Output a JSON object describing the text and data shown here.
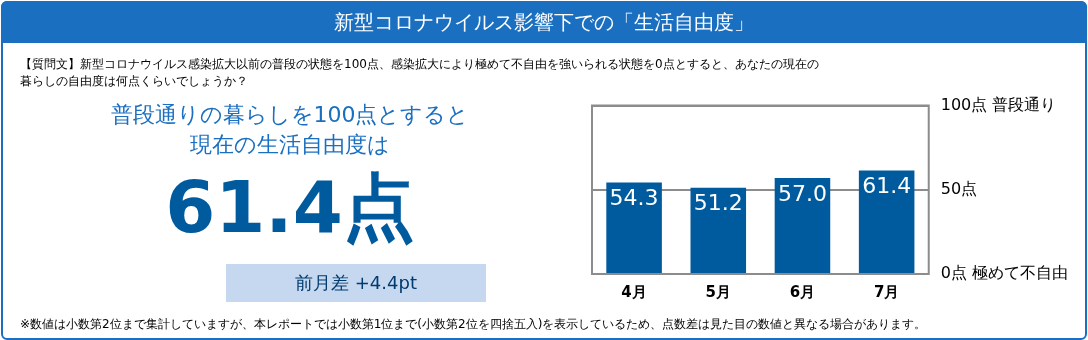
{
  "chart_data": {
    "type": "bar",
    "title": "新型コロナウイルス影響下での「生活自由度」",
    "subtitle": "【質問文】新型コロナウイルス感染拡大以前の普段の状態を100点、感染拡大により極めて不自由を強いられる状態を0点とすると、あなたの現在の暮らしの自由度は何点くらいでしょうか？",
    "categories": [
      "4月",
      "5月",
      "6月",
      "7月"
    ],
    "values": [
      54.3,
      51.2,
      57.0,
      61.4
    ],
    "value_labels": [
      "54.3",
      "51.2",
      "57.0",
      "61.4"
    ],
    "color": "#005a9e",
    "ylim": [
      0,
      100
    ],
    "yticks": [
      {
        "value": 0,
        "label": "0点 極めて不自由"
      },
      {
        "value": 50,
        "label": "50点"
      },
      {
        "value": 100,
        "label": "100点 普段通り"
      }
    ],
    "grid": "y",
    "legend": false,
    "annotations": [
      "普段通りの暮らしを100点とすると",
      "現在の生活自由度は",
      "61.4点",
      "前月差 +4.4pt",
      "※数値は小数第2位まで集計していますが、本レポートでは小数第1位まで(小数第2位を四捨五入)を表示しているため、点数差は見た目の数値と異なる場合があります。"
    ]
  }
}
